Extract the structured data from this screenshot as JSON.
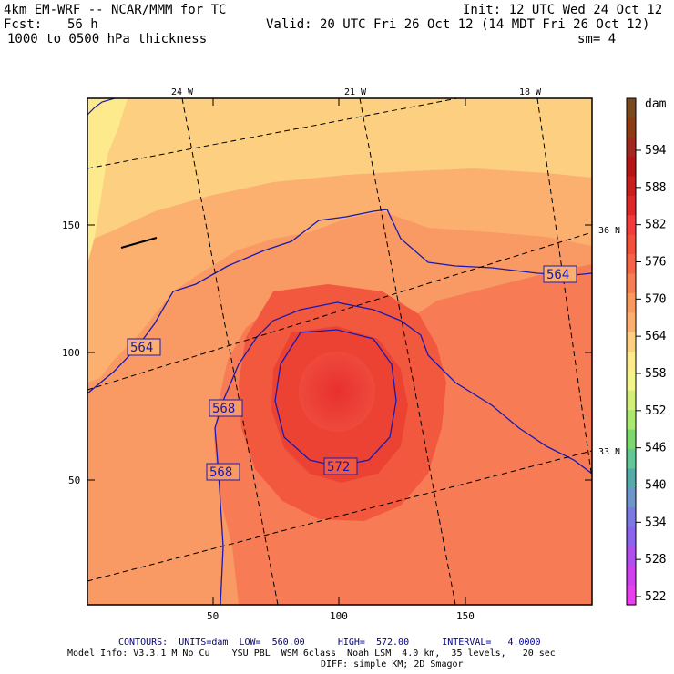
{
  "header": {
    "model": "4km EM-WRF -- NCAR/MMM for TC",
    "init": "Init: 12 UTC Wed 24 Oct 12",
    "fcst_label": "Fcst:",
    "fcst_value": "56 h",
    "valid": "Valid: 20 UTC Fri 26 Oct 12 (14 MDT Fri 26 Oct 12)",
    "field": "1000 to 0500 hPa thickness",
    "sm": "sm= 4"
  },
  "map": {
    "lon_labels": [
      "24 W",
      "21 W",
      "18 W"
    ],
    "lat_labels": [
      "36 N",
      "33 N"
    ],
    "x_ticks": [
      "50",
      "100",
      "150"
    ],
    "y_ticks": [
      "150",
      "100",
      "50"
    ],
    "contour_labels": [
      "564",
      "564",
      "568",
      "568",
      "572"
    ]
  },
  "colorbar": {
    "units": "dam",
    "levels": [
      "594",
      "588",
      "582",
      "576",
      "570",
      "564",
      "558",
      "552",
      "546",
      "540",
      "534",
      "528",
      "522"
    ],
    "colors": [
      "#7a4a1e",
      "#8c3c14",
      "#a0281e",
      "#b41414",
      "#c81e1e",
      "#dc2828",
      "#f03c3c",
      "#f0503c",
      "#f4644a",
      "#f67e54",
      "#f89a60",
      "#fbb070",
      "#fcd080",
      "#fcea8c",
      "#f4f48c",
      "#d4ee7c",
      "#aae870",
      "#7ed870",
      "#64c896",
      "#56aaa8",
      "#6e96c8",
      "#7a7ae0",
      "#8c64ec",
      "#b050ec",
      "#d040ec",
      "#e840ec"
    ]
  },
  "footer": {
    "line1": "CONTOURS:  UNITS=dam  LOW=  560.00      HIGH=  572.00      INTERVAL=   4.0000",
    "line2": "Model Info: V3.3.1 M No Cu    YSU PBL  WSM 6class  Noah LSM  4.0 km,  35 levels,   20 sec",
    "line3": "DIFF: simple KM; 2D Smagor"
  }
}
